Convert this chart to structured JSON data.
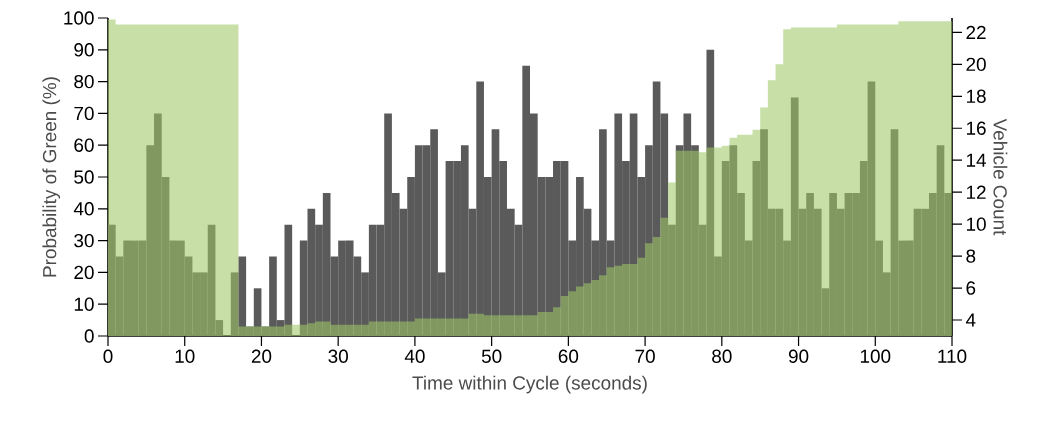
{
  "chart_data": {
    "type": "bar",
    "xlabel": "Time within Cycle (seconds)",
    "ylabel": "Probability of Green (%)",
    "y2label": "Vehicle Count",
    "x": [
      0.5,
      1.5,
      2.5,
      3.5,
      4.5,
      5.5,
      6.5,
      7.5,
      8.5,
      9.5,
      10.5,
      11.5,
      12.5,
      13.5,
      14.5,
      15.5,
      16.5,
      17.5,
      18.5,
      19.5,
      20.5,
      21.5,
      22.5,
      23.5,
      24.5,
      25.5,
      26.5,
      27.5,
      28.5,
      29.5,
      30.5,
      31.5,
      32.5,
      33.5,
      34.5,
      35.5,
      36.5,
      37.5,
      38.5,
      39.5,
      40.5,
      41.5,
      42.5,
      43.5,
      44.5,
      45.5,
      46.5,
      47.5,
      48.5,
      49.5,
      50.5,
      51.5,
      52.5,
      53.5,
      54.5,
      55.5,
      56.5,
      57.5,
      58.5,
      59.5,
      60.5,
      61.5,
      62.5,
      63.5,
      64.5,
      65.5,
      66.5,
      67.5,
      68.5,
      69.5,
      70.5,
      71.5,
      72.5,
      73.5,
      74.5,
      75.5,
      76.5,
      77.5,
      78.5,
      79.5,
      80.5,
      81.5,
      82.5,
      83.5,
      84.5,
      85.5,
      86.5,
      87.5,
      88.5,
      89.5,
      90.5,
      91.5,
      92.5,
      93.5,
      94.5,
      95.5,
      96.5,
      97.5,
      98.5,
      99.5,
      100.5,
      101.5,
      102.5,
      103.5,
      104.5,
      105.5,
      106.5,
      107.5,
      108.5,
      109.5
    ],
    "xlim": [
      0,
      110
    ],
    "xticks": [
      0,
      10,
      20,
      30,
      40,
      50,
      60,
      70,
      80,
      90,
      100,
      110
    ],
    "ylim": [
      0,
      100
    ],
    "yticks": [
      0,
      10,
      20,
      30,
      40,
      50,
      60,
      70,
      80,
      90,
      100
    ],
    "y2lim": [
      3,
      22.9
    ],
    "y2ticks": [
      4,
      6,
      8,
      10,
      12,
      14,
      16,
      18,
      20,
      22
    ],
    "series": [
      {
        "color": "#5a5a5a",
        "values": [
          35,
          25,
          30,
          30,
          30,
          60,
          70,
          50,
          30,
          30,
          25,
          20,
          20,
          35,
          5,
          0,
          20,
          25,
          3,
          15,
          3,
          25,
          5,
          35,
          0,
          30,
          40,
          35,
          45,
          25,
          30,
          30,
          25,
          20,
          35,
          35,
          70,
          45,
          40,
          50,
          60,
          60,
          65,
          20,
          55,
          55,
          60,
          40,
          80,
          50,
          65,
          55,
          40,
          35,
          85,
          70,
          50,
          50,
          55,
          55,
          30,
          50,
          40,
          30,
          65,
          30,
          70,
          55,
          70,
          50,
          60,
          80,
          70,
          35,
          60,
          70,
          60,
          35,
          90,
          25,
          55,
          60,
          45,
          30,
          55,
          65,
          40,
          40,
          30,
          75,
          40,
          45,
          40,
          15,
          45,
          40,
          45,
          45,
          55,
          80,
          30,
          20,
          65,
          30,
          30,
          40,
          40,
          45,
          60,
          45
        ]
      },
      {
        "axis": "y2",
        "type": "area",
        "color": "#9ec866",
        "x": [
          0,
          1,
          2,
          3,
          4,
          5,
          6,
          7,
          8,
          9,
          10,
          11,
          12,
          13,
          14,
          15,
          16,
          17,
          18,
          19,
          20,
          21,
          22,
          23,
          24,
          25,
          26,
          27,
          28,
          29,
          30,
          31,
          32,
          33,
          34,
          35,
          36,
          37,
          38,
          39,
          40,
          41,
          42,
          43,
          44,
          45,
          46,
          47,
          48,
          49,
          50,
          51,
          52,
          53,
          54,
          55,
          56,
          57,
          58,
          59,
          60,
          61,
          62,
          63,
          64,
          65,
          66,
          67,
          68,
          69,
          70,
          71,
          72,
          73,
          74,
          75,
          76,
          77,
          78,
          79,
          80,
          81,
          82,
          83,
          84,
          85,
          86,
          87,
          88,
          89,
          90,
          91,
          92,
          93,
          94,
          95,
          96,
          97,
          98,
          99,
          100,
          101,
          102,
          103,
          104,
          105,
          106,
          107,
          108,
          109,
          110
        ],
        "values": [
          22.8,
          22.5,
          22.5,
          22.5,
          22.5,
          22.5,
          22.5,
          22.5,
          22.5,
          22.5,
          22.5,
          22.5,
          22.5,
          22.5,
          22.5,
          22.5,
          22.5,
          3.6,
          3.6,
          3.6,
          3.6,
          3.6,
          3.6,
          3.7,
          3.7,
          3.7,
          3.8,
          3.9,
          3.9,
          3.7,
          3.7,
          3.7,
          3.7,
          3.7,
          3.9,
          3.9,
          3.9,
          3.9,
          3.9,
          3.9,
          4.1,
          4.1,
          4.1,
          4.1,
          4.1,
          4.1,
          4.1,
          4.4,
          4.4,
          4.3,
          4.3,
          4.3,
          4.3,
          4.3,
          4.3,
          4.3,
          4.5,
          4.5,
          4.8,
          5.5,
          5.8,
          6.1,
          6.3,
          6.5,
          6.8,
          7.3,
          7.4,
          7.5,
          7.5,
          7.9,
          8.8,
          9.2,
          10.4,
          12.6,
          14.6,
          14.6,
          14.6,
          14.5,
          14.8,
          14.8,
          14.9,
          15.4,
          15.6,
          15.6,
          15.9,
          17.3,
          19.0,
          20.0,
          22.2,
          22.3,
          22.3,
          22.3,
          22.3,
          22.3,
          22.3,
          22.5,
          22.5,
          22.5,
          22.5,
          22.5,
          22.5,
          22.5,
          22.5,
          22.7,
          22.7,
          22.7,
          22.7,
          22.7,
          22.7,
          22.7,
          22.7
        ]
      }
    ]
  }
}
